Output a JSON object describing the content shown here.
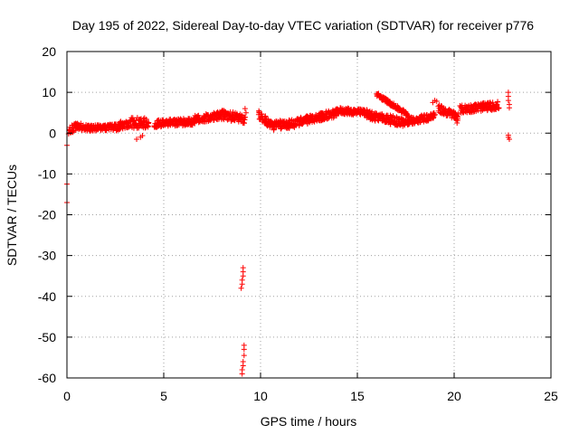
{
  "chart_data": {
    "type": "scatter",
    "title": "Day 195 of 2022, Sidereal Day-to-day VTEC variation (SDTVAR) for receiver p776",
    "xlabel": "GPS time / hours",
    "ylabel": "SDTVAR / TECUs",
    "xlim": [
      0,
      25
    ],
    "ylim": [
      -60,
      20
    ],
    "xticks": [
      0,
      5,
      10,
      15,
      20,
      25
    ],
    "yticks": [
      -60,
      -50,
      -40,
      -30,
      -20,
      -10,
      0,
      10,
      20
    ],
    "grid": true,
    "marker": "+",
    "colors": {
      "series": "#ff0000",
      "grid": "#a0a0a0",
      "axis": "#000000",
      "background": "#ffffff"
    },
    "dense_segments": [
      {
        "x": [
          0.1,
          0.5
        ],
        "y": [
          0.5,
          1.8
        ],
        "spread": 2.0
      },
      {
        "x": [
          0.5,
          1.2
        ],
        "y": [
          1.8,
          1.2
        ],
        "spread": 1.6
      },
      {
        "x": [
          1.2,
          2.5
        ],
        "y": [
          1.2,
          1.5
        ],
        "spread": 1.5
      },
      {
        "x": [
          2.5,
          3.3
        ],
        "y": [
          1.5,
          2.5
        ],
        "spread": 2.0
      },
      {
        "x": [
          3.3,
          4.2
        ],
        "y": [
          2.5,
          2.5
        ],
        "spread": 2.6
      },
      {
        "x": [
          4.5,
          6.5
        ],
        "y": [
          2.3,
          2.8
        ],
        "spread": 1.8
      },
      {
        "x": [
          6.5,
          8.0
        ],
        "y": [
          3.2,
          4.3
        ],
        "spread": 2.0
      },
      {
        "x": [
          8.0,
          9.2
        ],
        "y": [
          4.5,
          3.5
        ],
        "spread": 2.3
      },
      {
        "x": [
          9.9,
          10.6
        ],
        "y": [
          4.5,
          1.8
        ],
        "spread": 2.2
      },
      {
        "x": [
          10.6,
          12.0
        ],
        "y": [
          1.8,
          2.5
        ],
        "spread": 2.2
      },
      {
        "x": [
          12.0,
          14.0
        ],
        "y": [
          2.8,
          5.0
        ],
        "spread": 2.0
      },
      {
        "x": [
          14.0,
          15.5
        ],
        "y": [
          5.5,
          5.0
        ],
        "spread": 1.6
      },
      {
        "x": [
          15.5,
          17.5
        ],
        "y": [
          4.5,
          2.5
        ],
        "spread": 2.2
      },
      {
        "x": [
          16.0,
          17.6
        ],
        "y": [
          9.5,
          4.5
        ],
        "spread": 1.0
      },
      {
        "x": [
          17.5,
          19.0
        ],
        "y": [
          2.8,
          4.2
        ],
        "spread": 1.8
      },
      {
        "x": [
          19.2,
          20.2
        ],
        "y": [
          6.0,
          4.0
        ],
        "spread": 2.0
      },
      {
        "x": [
          20.3,
          22.3
        ],
        "y": [
          5.8,
          6.8
        ],
        "spread": 2.0
      }
    ],
    "sparse_points": [
      [
        0.0,
        -3
      ],
      [
        0.0,
        -12.5
      ],
      [
        0.0,
        -17
      ],
      [
        3.6,
        -1.5
      ],
      [
        3.8,
        -1.0
      ],
      [
        3.9,
        -0.6
      ],
      [
        9.1,
        -33
      ],
      [
        9.1,
        -34
      ],
      [
        9.1,
        -35
      ],
      [
        9.05,
        -36
      ],
      [
        9.05,
        -37
      ],
      [
        9.0,
        -38
      ],
      [
        9.15,
        -52
      ],
      [
        9.15,
        -53
      ],
      [
        9.15,
        -54.5
      ],
      [
        9.1,
        -56
      ],
      [
        9.1,
        -57
      ],
      [
        9.05,
        -58
      ],
      [
        9.05,
        -59
      ],
      [
        9.2,
        6.0
      ],
      [
        9.25,
        5.0
      ],
      [
        18.9,
        7.5
      ],
      [
        19.0,
        8.0
      ],
      [
        19.1,
        7.8
      ],
      [
        20.1,
        3.5
      ],
      [
        20.15,
        2.5
      ],
      [
        22.8,
        10.0
      ],
      [
        22.8,
        9.0
      ],
      [
        22.8,
        8.0
      ],
      [
        22.85,
        7.0
      ],
      [
        22.85,
        6.2
      ],
      [
        22.8,
        -0.5
      ],
      [
        22.8,
        -1.0
      ],
      [
        22.85,
        -1.5
      ]
    ]
  }
}
